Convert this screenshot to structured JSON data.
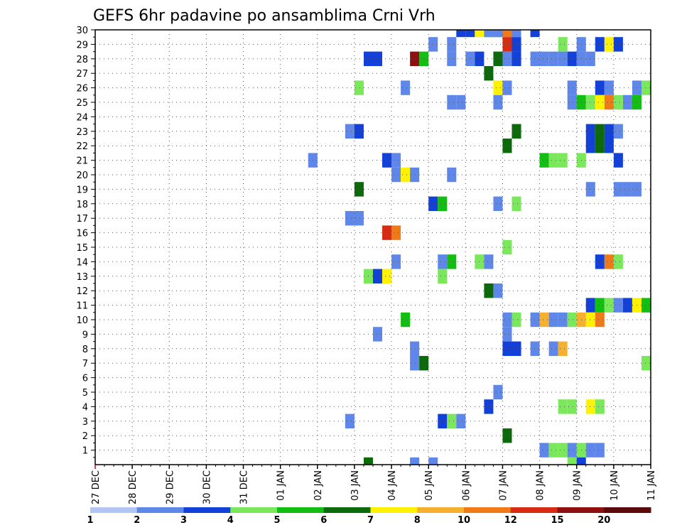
{
  "chart_data": {
    "type": "heatmap",
    "title": "GEFS 6hr padavine po ansamblima Crni Vrh",
    "x_tick_labels": [
      "27 DEC",
      "28 DEC",
      "29 DEC",
      "30 DEC",
      "31 DEC",
      "01 JAN",
      "02 JAN",
      "03 JAN",
      "04 JAN",
      "05 JAN",
      "06 JAN",
      "07 JAN",
      "08 JAN",
      "09 JAN",
      "10 JAN",
      "11 JAN"
    ],
    "y_tick_labels": [
      "1",
      "2",
      "3",
      "4",
      "5",
      "6",
      "7",
      "8",
      "9",
      "10",
      "11",
      "12",
      "13",
      "14",
      "15",
      "16",
      "17",
      "18",
      "19",
      "20",
      "21",
      "22",
      "23",
      "24",
      "25",
      "26",
      "27",
      "28",
      "29",
      "30"
    ],
    "x_range_days": [
      0,
      15
    ],
    "y_range": [
      0,
      30
    ],
    "grid": true,
    "step_days": 0.25,
    "legend": {
      "position": "bottom",
      "labels": [
        "1",
        "2",
        "3",
        "4",
        "5",
        "6",
        "7",
        "8",
        "10",
        "12",
        "15",
        "20"
      ],
      "colors": [
        "#b3c6f2",
        "#5f87ea",
        "#1240d8",
        "#7ae85a",
        "#13be13",
        "#0c6a0c",
        "#fff200",
        "#f5b030",
        "#f07a18",
        "#d62d12",
        "#8e1010",
        "#5a0a0a"
      ]
    },
    "cells": [
      [
        10.5,
        30,
        4
      ],
      [
        10.75,
        30,
        4
      ],
      [
        9.75,
        30,
        2
      ],
      [
        10.0,
        30,
        2
      ],
      [
        10.25,
        30,
        6
      ],
      [
        10.5,
        30,
        1
      ],
      [
        10.75,
        30,
        1
      ],
      [
        11.0,
        30,
        8
      ],
      [
        11.25,
        30,
        1
      ],
      [
        11.75,
        30,
        2
      ],
      [
        9.0,
        29,
        1
      ],
      [
        9.5,
        29,
        1
      ],
      [
        11.0,
        29,
        9
      ],
      [
        11.25,
        29,
        2
      ],
      [
        12.5,
        29,
        3
      ],
      [
        13.0,
        29,
        1
      ],
      [
        13.5,
        29,
        2
      ],
      [
        13.75,
        29,
        6
      ],
      [
        14.0,
        29,
        2
      ],
      [
        7.25,
        28,
        2
      ],
      [
        7.5,
        28,
        2
      ],
      [
        8.5,
        28,
        10
      ],
      [
        8.75,
        28,
        4
      ],
      [
        9.5,
        28,
        1
      ],
      [
        10.0,
        28,
        1
      ],
      [
        10.25,
        28,
        2
      ],
      [
        10.75,
        28,
        5
      ],
      [
        11.0,
        28,
        1
      ],
      [
        11.25,
        28,
        2
      ],
      [
        11.75,
        28,
        1
      ],
      [
        12.0,
        28,
        1
      ],
      [
        12.25,
        28,
        1
      ],
      [
        12.5,
        28,
        1
      ],
      [
        12.75,
        28,
        2
      ],
      [
        13.0,
        28,
        1
      ],
      [
        13.25,
        28,
        1
      ],
      [
        10.5,
        27,
        5
      ],
      [
        7.0,
        26,
        3
      ],
      [
        8.25,
        26,
        1
      ],
      [
        10.75,
        26,
        6
      ],
      [
        11.0,
        26,
        1
      ],
      [
        12.75,
        26,
        1
      ],
      [
        13.5,
        26,
        2
      ],
      [
        13.75,
        26,
        1
      ],
      [
        14.5,
        26,
        1
      ],
      [
        14.75,
        26,
        3
      ],
      [
        9.5,
        25,
        1
      ],
      [
        9.75,
        25,
        1
      ],
      [
        10.75,
        25,
        1
      ],
      [
        12.75,
        25,
        1
      ],
      [
        13.0,
        25,
        4
      ],
      [
        13.25,
        25,
        3
      ],
      [
        13.5,
        25,
        6
      ],
      [
        13.75,
        25,
        8
      ],
      [
        14.0,
        25,
        3
      ],
      [
        14.25,
        25,
        1
      ],
      [
        14.5,
        25,
        4
      ],
      [
        6.75,
        23,
        1
      ],
      [
        7.0,
        23,
        2
      ],
      [
        11.25,
        23,
        5
      ],
      [
        13.25,
        23,
        2
      ],
      [
        13.5,
        23,
        5
      ],
      [
        13.75,
        23,
        2
      ],
      [
        14.0,
        23,
        1
      ],
      [
        11.0,
        22,
        5
      ],
      [
        13.25,
        22,
        2
      ],
      [
        13.5,
        22,
        5
      ],
      [
        13.75,
        22,
        2
      ],
      [
        7.75,
        21,
        2
      ],
      [
        8.0,
        21,
        1
      ],
      [
        5.75,
        21,
        1
      ],
      [
        12.0,
        21,
        4
      ],
      [
        12.25,
        21,
        3
      ],
      [
        12.5,
        21,
        3
      ],
      [
        13.0,
        21,
        3
      ],
      [
        14.0,
        21,
        2
      ],
      [
        8.0,
        20,
        1
      ],
      [
        8.25,
        20,
        6
      ],
      [
        8.5,
        20,
        1
      ],
      [
        9.5,
        20,
        1
      ],
      [
        7.0,
        19,
        5
      ],
      [
        13.25,
        19,
        1
      ],
      [
        14.0,
        19,
        1
      ],
      [
        14.25,
        19,
        1
      ],
      [
        14.5,
        19,
        1
      ],
      [
        9.0,
        18,
        2
      ],
      [
        9.25,
        18,
        4
      ],
      [
        10.75,
        18,
        1
      ],
      [
        11.25,
        18,
        3
      ],
      [
        6.75,
        17,
        1
      ],
      [
        7.0,
        17,
        1
      ],
      [
        7.75,
        16,
        9
      ],
      [
        8.0,
        16,
        8
      ],
      [
        11.0,
        15,
        3
      ],
      [
        8.0,
        14,
        1
      ],
      [
        9.25,
        14,
        1
      ],
      [
        9.5,
        14,
        4
      ],
      [
        10.25,
        14,
        3
      ],
      [
        10.5,
        14,
        1
      ],
      [
        13.5,
        14,
        2
      ],
      [
        13.75,
        14,
        8
      ],
      [
        14.0,
        14,
        3
      ],
      [
        7.25,
        13,
        3
      ],
      [
        7.5,
        13,
        2
      ],
      [
        7.75,
        13,
        6
      ],
      [
        9.25,
        13,
        3
      ],
      [
        10.5,
        12,
        5
      ],
      [
        10.75,
        12,
        1
      ],
      [
        13.25,
        11,
        2
      ],
      [
        13.5,
        11,
        4
      ],
      [
        13.75,
        11,
        3
      ],
      [
        14.0,
        11,
        1
      ],
      [
        14.25,
        11,
        2
      ],
      [
        14.5,
        11,
        6
      ],
      [
        14.75,
        11,
        4
      ],
      [
        8.25,
        10,
        4
      ],
      [
        11.0,
        10,
        1
      ],
      [
        11.25,
        10,
        3
      ],
      [
        11.75,
        10,
        1
      ],
      [
        12.0,
        10,
        7
      ],
      [
        12.25,
        10,
        1
      ],
      [
        12.5,
        10,
        1
      ],
      [
        12.75,
        10,
        3
      ],
      [
        13.0,
        10,
        7
      ],
      [
        13.25,
        10,
        6
      ],
      [
        13.5,
        10,
        8
      ],
      [
        7.5,
        9,
        1
      ],
      [
        11.0,
        9,
        1
      ],
      [
        8.5,
        8,
        1
      ],
      [
        11.0,
        8,
        2
      ],
      [
        11.25,
        8,
        2
      ],
      [
        11.75,
        8,
        1
      ],
      [
        12.25,
        8,
        1
      ],
      [
        12.5,
        8,
        7
      ],
      [
        8.5,
        7,
        1
      ],
      [
        8.75,
        7,
        5
      ],
      [
        14.75,
        7,
        3
      ],
      [
        10.75,
        5,
        1
      ],
      [
        10.5,
        4,
        2
      ],
      [
        12.5,
        4,
        3
      ],
      [
        12.75,
        4,
        3
      ],
      [
        13.25,
        4,
        6
      ],
      [
        13.5,
        4,
        3
      ],
      [
        6.75,
        3,
        1
      ],
      [
        9.25,
        3,
        2
      ],
      [
        9.5,
        3,
        3
      ],
      [
        9.75,
        3,
        1
      ],
      [
        11.0,
        2,
        5
      ],
      [
        12.0,
        1,
        1
      ],
      [
        12.25,
        1,
        3
      ],
      [
        12.5,
        1,
        3
      ],
      [
        12.75,
        1,
        1
      ],
      [
        13.0,
        1,
        3
      ],
      [
        13.25,
        1,
        1
      ],
      [
        13.5,
        1,
        1
      ],
      [
        7.25,
        0,
        5
      ],
      [
        8.5,
        0,
        1
      ],
      [
        9.0,
        0,
        1
      ],
      [
        12.75,
        0,
        3
      ],
      [
        13.0,
        0,
        2
      ]
    ]
  }
}
